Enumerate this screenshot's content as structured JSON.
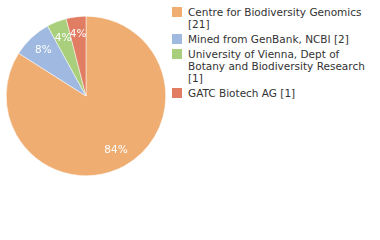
{
  "chart_data": {
    "type": "pie",
    "categories": [
      "Centre for Biodiversity Genomics [21]",
      "Mined from GenBank, NCBI [2]",
      "University of Vienna, Dept of Botany and Biodiversity Research [1]",
      "GATC Biotech AG [1]"
    ],
    "values": [
      84,
      8,
      4,
      4
    ],
    "value_labels": [
      "84%",
      "8%",
      "4%",
      "4%"
    ],
    "colors": [
      "#f0ad72",
      "#9fb9e0",
      "#a9cf7c",
      "#e07d62"
    ],
    "legend": "right",
    "data_labels": true
  }
}
